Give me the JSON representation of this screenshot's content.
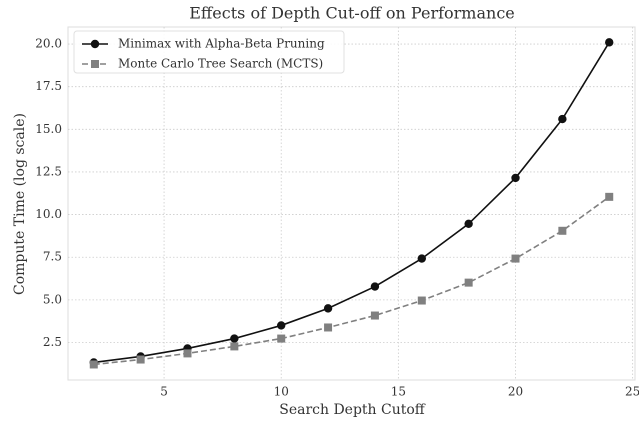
{
  "chart_data": {
    "type": "line",
    "title": "Effects of Depth Cut-off on Performance",
    "xlabel": "Search Depth Cutoff",
    "ylabel": "Compute Time (log scale)",
    "x": [
      2,
      4,
      6,
      8,
      10,
      12,
      14,
      16,
      18,
      20,
      22,
      24
    ],
    "series": [
      {
        "name": "Minimax with Alpha-Beta Pruning",
        "color": "#111111",
        "marker": "circle",
        "linestyle": "solid",
        "values": [
          1.33,
          1.68,
          2.15,
          2.73,
          3.5,
          4.5,
          5.78,
          7.42,
          9.46,
          12.15,
          15.6,
          20.1
        ]
      },
      {
        "name": "Monte Carlo Tree Search (MCTS)",
        "color": "#808080",
        "marker": "square",
        "linestyle": "dashed",
        "values": [
          1.21,
          1.5,
          1.86,
          2.27,
          2.73,
          3.38,
          4.08,
          4.96,
          6.01,
          7.42,
          9.05,
          11.04
        ]
      }
    ],
    "xlim": [
      0.9,
      25.1
    ],
    "xticks": [
      5,
      10,
      15,
      20,
      25
    ],
    "ylim": [
      0.3,
      21.0
    ],
    "yticks": [
      2.5,
      {
        "value": 5,
        "label": "5.0"
      },
      7.5,
      {
        "value": 10,
        "label": "10.0"
      },
      12.5,
      {
        "value": 15,
        "label": "15.0"
      },
      17.5,
      {
        "value": 20,
        "label": "20.0"
      }
    ],
    "grid": true,
    "legend": "upper left"
  }
}
